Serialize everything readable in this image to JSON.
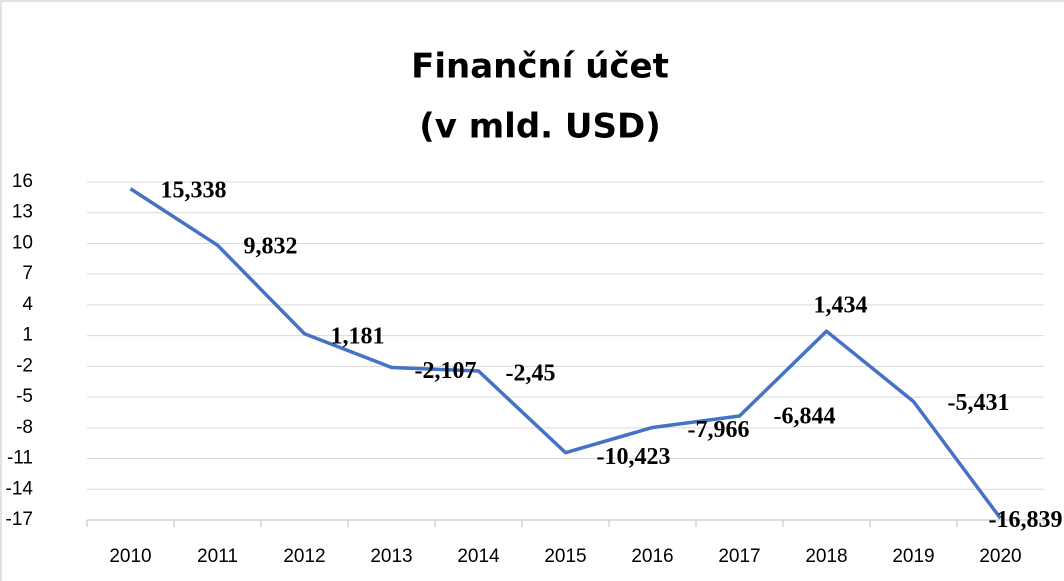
{
  "chart_data": {
    "type": "line",
    "title": "Finanční účet",
    "subtitle": "(v mld. USD)",
    "categories": [
      "2010",
      "2011",
      "2012",
      "2013",
      "2014",
      "2015",
      "2016",
      "2017",
      "2018",
      "2019",
      "2020"
    ],
    "series": [
      {
        "name": "Finanční účet",
        "color": "#4472c4",
        "values": [
          15.338,
          9.832,
          1.181,
          -2.107,
          -2.45,
          -10.423,
          -7.966,
          -6.844,
          1.434,
          -5.431,
          -16.839
        ],
        "value_labels": [
          "15,338",
          "9,832",
          "1,181",
          "-2,107",
          "-2,45",
          "-10,423",
          "-7,966",
          "-6,844",
          "1,434",
          "-5,431",
          "-16,839"
        ]
      }
    ],
    "ylim": [
      -17,
      16
    ],
    "yticks": [
      -17,
      -14,
      -11,
      -8,
      -5,
      -2,
      1,
      4,
      7,
      10,
      13,
      16
    ],
    "grid": true
  }
}
